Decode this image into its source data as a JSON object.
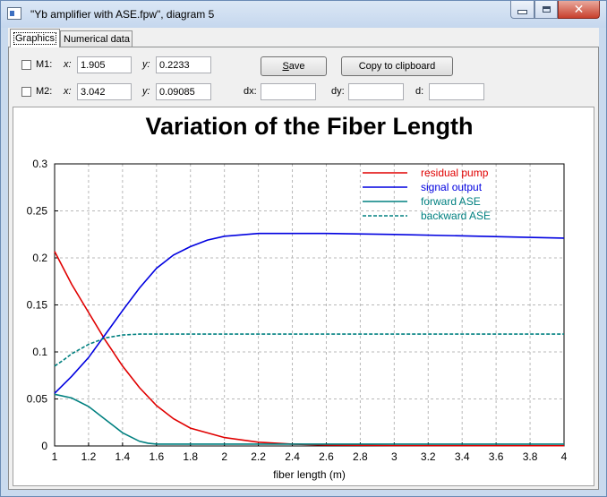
{
  "window": {
    "title": "\"Yb amplifier with ASE.fpw\", diagram 5",
    "controls": {
      "minimize": "minimize",
      "maximize": "maximize",
      "close": "close"
    }
  },
  "tabs": [
    {
      "label": "Graphics",
      "active": true
    },
    {
      "label": "Numerical data",
      "active": false
    }
  ],
  "markers": {
    "m1": {
      "label": "M1:",
      "checked": false,
      "x_label": "x:",
      "x_value": "1.905",
      "y_label": "y:",
      "y_value": "0.2233"
    },
    "m2": {
      "label": "M2:",
      "checked": false,
      "x_label": "x:",
      "x_value": "3.042",
      "y_label": "y:",
      "y_value": "0.09085"
    },
    "dx_label": "dx:",
    "dx_value": "",
    "dy_label": "dy:",
    "dy_value": "",
    "d_label": "d:",
    "d_value": ""
  },
  "buttons": {
    "save_prefix": "",
    "save_accel": "S",
    "save_rest": "ave",
    "copy": "Copy to clipboard"
  },
  "chart_data": {
    "type": "line",
    "title": "Variation of the Fiber Length",
    "xlabel": "fiber length (m)",
    "ylabel": "",
    "xlim": [
      1,
      4
    ],
    "ylim": [
      0,
      0.3
    ],
    "xticks": [
      "1",
      "1.2",
      "1.4",
      "1.6",
      "1.8",
      "2",
      "2.2",
      "2.4",
      "2.6",
      "2.8",
      "3",
      "3.2",
      "3.4",
      "3.6",
      "3.8",
      "4"
    ],
    "yticks": [
      "0",
      "0.05",
      "0.1",
      "0.15",
      "0.2",
      "0.25",
      "0.3"
    ],
    "grid": true,
    "legend_position": "top-right",
    "series": [
      {
        "name": "residual pump",
        "color": "#e00000",
        "dash": false,
        "x": [
          1,
          1.1,
          1.2,
          1.3,
          1.4,
          1.5,
          1.6,
          1.7,
          1.8,
          2.0,
          2.2,
          2.4,
          2.6,
          3.0,
          4.0
        ],
        "y": [
          0.207,
          0.172,
          0.142,
          0.112,
          0.085,
          0.062,
          0.043,
          0.029,
          0.019,
          0.009,
          0.004,
          0.002,
          0.001,
          0.0005,
          0.0003
        ]
      },
      {
        "name": "signal output",
        "color": "#0000e0",
        "dash": false,
        "x": [
          1,
          1.1,
          1.2,
          1.3,
          1.4,
          1.5,
          1.6,
          1.7,
          1.8,
          1.9,
          2.0,
          2.2,
          2.4,
          2.6,
          3.0,
          3.5,
          4.0
        ],
        "y": [
          0.056,
          0.074,
          0.094,
          0.119,
          0.144,
          0.168,
          0.189,
          0.203,
          0.212,
          0.219,
          0.223,
          0.226,
          0.226,
          0.226,
          0.225,
          0.223,
          0.221
        ]
      },
      {
        "name": "forward ASE",
        "color": "#008080",
        "dash": false,
        "x": [
          1,
          1.1,
          1.2,
          1.3,
          1.4,
          1.5,
          1.55,
          1.6,
          1.7,
          2.0,
          3.0,
          4.0
        ],
        "y": [
          0.055,
          0.051,
          0.042,
          0.028,
          0.014,
          0.005,
          0.003,
          0.002,
          0.002,
          0.002,
          0.002,
          0.002
        ]
      },
      {
        "name": "backward ASE",
        "color": "#008080",
        "dash": true,
        "x": [
          1,
          1.05,
          1.1,
          1.2,
          1.3,
          1.4,
          1.5,
          1.6,
          2.0,
          3.0,
          4.0
        ],
        "y": [
          0.085,
          0.091,
          0.098,
          0.108,
          0.115,
          0.118,
          0.119,
          0.119,
          0.119,
          0.119,
          0.119
        ]
      }
    ]
  }
}
